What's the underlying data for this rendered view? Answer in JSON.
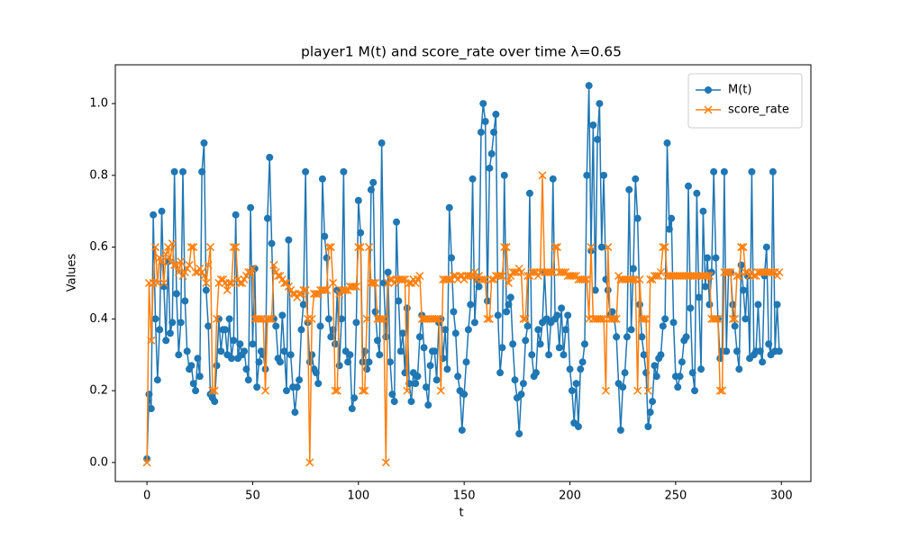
{
  "chart_data": {
    "type": "line",
    "title": "player1 M(t) and score_rate over time λ=0.65",
    "xlabel": "t",
    "ylabel": "Values",
    "x": [
      0,
      1,
      2,
      3,
      4,
      5,
      6,
      7,
      8,
      9,
      10,
      11,
      12,
      13,
      14,
      15,
      16,
      17,
      18,
      19,
      20,
      21,
      22,
      23,
      24,
      25,
      26,
      27,
      28,
      29,
      30,
      31,
      32,
      33,
      34,
      35,
      36,
      37,
      38,
      39,
      40,
      41,
      42,
      43,
      44,
      45,
      46,
      47,
      48,
      49,
      50,
      51,
      52,
      53,
      54,
      55,
      56,
      57,
      58,
      59,
      60,
      61,
      62,
      63,
      64,
      65,
      66,
      67,
      68,
      69,
      70,
      71,
      72,
      73,
      74,
      75,
      76,
      77,
      78,
      79,
      80,
      81,
      82,
      83,
      84,
      85,
      86,
      87,
      88,
      89,
      90,
      91,
      92,
      93,
      94,
      95,
      96,
      97,
      98,
      99,
      100,
      101,
      102,
      103,
      104,
      105,
      106,
      107,
      108,
      109,
      110,
      111,
      112,
      113,
      114,
      115,
      116,
      117,
      118,
      119,
      120,
      121,
      122,
      123,
      124,
      125,
      126,
      127,
      128,
      129,
      130,
      131,
      132,
      133,
      134,
      135,
      136,
      137,
      138,
      139,
      140,
      141,
      142,
      143,
      144,
      145,
      146,
      147,
      148,
      149,
      150,
      151,
      152,
      153,
      154,
      155,
      156,
      157,
      158,
      159,
      160,
      161,
      162,
      163,
      164,
      165,
      166,
      167,
      168,
      169,
      170,
      171,
      172,
      173,
      174,
      175,
      176,
      177,
      178,
      179,
      180,
      181,
      182,
      183,
      184,
      185,
      186,
      187,
      188,
      189,
      190,
      191,
      192,
      193,
      194,
      195,
      196,
      197,
      198,
      199,
      200,
      201,
      202,
      203,
      204,
      205,
      206,
      207,
      208,
      209,
      210,
      211,
      212,
      213,
      214,
      215,
      216,
      217,
      218,
      219,
      220,
      221,
      222,
      223,
      224,
      225,
      226,
      227,
      228,
      229,
      230,
      231,
      232,
      233,
      234,
      235,
      236,
      237,
      238,
      239,
      240,
      241,
      242,
      243,
      244,
      245,
      246,
      247,
      248,
      249,
      250,
      251,
      252,
      253,
      254,
      255,
      256,
      257,
      258,
      259,
      260,
      261,
      262,
      263,
      264,
      265,
      266,
      267,
      268,
      269,
      270,
      271,
      272,
      273,
      274,
      275,
      276,
      277,
      278,
      279,
      280,
      281,
      282,
      283,
      284,
      285,
      286,
      287,
      288,
      289,
      290,
      291,
      292,
      293,
      294,
      295,
      296,
      297,
      298,
      299
    ],
    "series": [
      {
        "name": "M(t)",
        "color": "#1f77b4",
        "marker": "o",
        "values": [
          0.01,
          0.19,
          0.15,
          0.69,
          0.4,
          0.23,
          0.37,
          0.7,
          0.49,
          0.34,
          0.56,
          0.36,
          0.39,
          0.81,
          0.47,
          0.3,
          0.39,
          0.81,
          0.45,
          0.31,
          0.26,
          0.27,
          0.22,
          0.2,
          0.29,
          0.24,
          0.81,
          0.89,
          0.48,
          0.38,
          0.19,
          0.18,
          0.17,
          0.27,
          0.4,
          0.31,
          0.37,
          0.37,
          0.3,
          0.4,
          0.29,
          0.34,
          0.69,
          0.29,
          0.33,
          0.3,
          0.31,
          0.26,
          0.23,
          0.71,
          0.33,
          0.54,
          0.21,
          0.28,
          0.31,
          0.3,
          0.26,
          0.68,
          0.85,
          0.61,
          0.4,
          0.38,
          0.29,
          0.28,
          0.41,
          0.31,
          0.2,
          0.62,
          0.3,
          0.21,
          0.14,
          0.21,
          0.23,
          0.37,
          0.44,
          0.81,
          0.39,
          0.28,
          0.3,
          0.26,
          0.25,
          0.22,
          0.38,
          0.79,
          0.63,
          0.57,
          0.4,
          0.35,
          0.37,
          0.33,
          0.48,
          0.27,
          0.4,
          0.81,
          0.31,
          0.28,
          0.3,
          0.15,
          0.18,
          0.39,
          0.73,
          0.64,
          0.28,
          0.31,
          0.26,
          0.28,
          0.76,
          0.78,
          0.42,
          0.34,
          0.3,
          0.89,
          0.5,
          0.35,
          0.53,
          0.28,
          0.19,
          0.17,
          0.67,
          0.45,
          0.31,
          0.36,
          0.25,
          0.43,
          0.22,
          0.17,
          0.25,
          0.22,
          0.24,
          0.35,
          0.41,
          0.32,
          0.21,
          0.16,
          0.27,
          0.31,
          0.31,
          0.23,
          0.39,
          0.4,
          0.29,
          0.37,
          0.26,
          0.71,
          0.57,
          0.42,
          0.36,
          0.24,
          0.2,
          0.09,
          0.19,
          0.28,
          0.37,
          0.44,
          0.79,
          0.39,
          0.51,
          0.49,
          0.92,
          1.0,
          0.95,
          0.45,
          0.82,
          0.86,
          0.92,
          0.97,
          0.41,
          0.25,
          0.32,
          0.8,
          0.42,
          0.44,
          0.46,
          0.33,
          0.23,
          0.18,
          0.08,
          0.19,
          0.22,
          0.34,
          0.38,
          0.75,
          0.3,
          0.24,
          0.25,
          0.37,
          0.33,
          0.39,
          0.53,
          0.4,
          0.3,
          0.39,
          0.79,
          0.4,
          0.41,
          0.32,
          0.43,
          0.3,
          0.37,
          0.41,
          0.26,
          0.2,
          0.11,
          0.22,
          0.1,
          0.26,
          0.28,
          0.33,
          0.8,
          1.05,
          0.59,
          0.94,
          0.48,
          0.9,
          1.0,
          0.6,
          0.8,
          0.51,
          0.48,
          0.41,
          0.42,
          0.4,
          0.35,
          0.22,
          0.09,
          0.21,
          0.25,
          0.35,
          0.76,
          0.37,
          0.54,
          0.79,
          0.68,
          0.44,
          0.35,
          0.3,
          0.25,
          0.1,
          0.14,
          0.17,
          0.27,
          0.24,
          0.29,
          0.3,
          0.38,
          0.4,
          0.89,
          0.65,
          0.68,
          0.39,
          0.24,
          0.21,
          0.24,
          0.28,
          0.34,
          0.35,
          0.77,
          0.43,
          0.25,
          0.2,
          0.75,
          0.46,
          0.26,
          0.7,
          0.49,
          0.57,
          0.44,
          0.53,
          0.81,
          0.57,
          0.4,
          0.29,
          0.31,
          0.81,
          0.31,
          0.53,
          0.53,
          0.44,
          0.38,
          0.31,
          0.26,
          0.55,
          0.48,
          0.4,
          0.52,
          0.29,
          0.81,
          0.3,
          0.31,
          0.44,
          0.31,
          0.28,
          0.52,
          0.6,
          0.33,
          0.3,
          0.81,
          0.31,
          0.44,
          0.31
        ]
      },
      {
        "name": "score_rate",
        "color": "#ff7f0e",
        "marker": "x",
        "values": [
          0,
          0.5,
          0.34,
          0.5,
          0.6,
          0.5,
          0.57,
          0.56,
          0.5,
          0.58,
          0.6,
          0.56,
          0.61,
          0.55,
          0.55,
          0.53,
          0.56,
          0.52,
          0.53,
          0.54,
          0.55,
          0.6,
          0.6,
          0.53,
          0.53,
          0.54,
          0.53,
          0.52,
          0.5,
          0.55,
          0.6,
          0.2,
          0.2,
          0.4,
          0.5,
          0.51,
          0.51,
          0.5,
          0.48,
          0.5,
          0.5,
          0.6,
          0.6,
          0.51,
          0.5,
          0.5,
          0.51,
          0.52,
          0.53,
          0.53,
          0.54,
          0.4,
          0.4,
          0.4,
          0.4,
          0.4,
          0.2,
          0.4,
          0.4,
          0.4,
          0.55,
          0.53,
          0.52,
          0.52,
          0.51,
          0.5,
          0.5,
          0.49,
          0.48,
          0.47,
          0.47,
          0.46,
          0.47,
          0.47,
          0.48,
          0.48,
          0.4,
          0,
          0.4,
          0.47,
          0.47,
          0.47,
          0.48,
          0.48,
          0.48,
          0.48,
          0.6,
          0.6,
          0.5,
          0.2,
          0.2,
          0.47,
          0.48,
          0.48,
          0.48,
          0.48,
          0.49,
          0.49,
          0.49,
          0.49,
          0.6,
          0.6,
          0.2,
          0.2,
          0.4,
          0.6,
          0.5,
          0.5,
          0.5,
          0.4,
          0.4,
          0.4,
          0.4,
          0,
          0.5,
          0.51,
          0.51,
          0.5,
          0.51,
          0.51,
          0.51,
          0.51,
          0.51,
          0.2,
          0.5,
          0.5,
          0.51,
          0.5,
          0.51,
          0.52,
          0.4,
          0.4,
          0.4,
          0.4,
          0.4,
          0.4,
          0.4,
          0.4,
          0.4,
          0.2,
          0.51,
          0.51,
          0.51,
          0.51,
          0.51,
          0.52,
          0.52,
          0.51,
          0.52,
          0.52,
          0.51,
          0.52,
          0.52,
          0.52,
          0.52,
          0.53,
          0.51,
          0.52,
          0.51,
          0.51,
          0.51,
          0.4,
          0.4,
          0.51,
          0.51,
          0.52,
          0.52,
          0.52,
          0.52,
          0.6,
          0.6,
          0.5,
          0.52,
          0.53,
          0.53,
          0.53,
          0.54,
          0.53,
          0.4,
          0.4,
          0.52,
          0.52,
          0.53,
          0.53,
          0.53,
          0.52,
          0.53,
          0.8,
          0.53,
          0.53,
          0.53,
          0.53,
          0.53,
          0.6,
          0.6,
          0.53,
          0.53,
          0.53,
          0.53,
          0.52,
          0.52,
          0.52,
          0.52,
          0.52,
          0.51,
          0.51,
          0.51,
          0.51,
          0.51,
          0.4,
          0.6,
          0.4,
          0.4,
          0.4,
          0.4,
          0.4,
          0.4,
          0.2,
          0.6,
          0.4,
          0.4,
          0.4,
          0.4,
          0.52,
          0.51,
          0.51,
          0.51,
          0.51,
          0.51,
          0.51,
          0.51,
          0.51,
          0.2,
          0.51,
          0.4,
          0.4,
          0.4,
          0.2,
          0.51,
          0.51,
          0.52,
          0.52,
          0.52,
          0.53,
          0.6,
          0.6,
          0.52,
          0.52,
          0.52,
          0.52,
          0.52,
          0.52,
          0.52,
          0.52,
          0.52,
          0.52,
          0.52,
          0.52,
          0.52,
          0.52,
          0.52,
          0.52,
          0.52,
          0.52,
          0.52,
          0.52,
          0.52,
          0.4,
          0.4,
          0.4,
          0.4,
          0.2,
          0.2,
          0.53,
          0.53,
          0.53,
          0.53,
          0.4,
          0.4,
          0.52,
          0.52,
          0.6,
          0.6,
          0.53,
          0.53,
          0.52,
          0.53,
          0.52,
          0.52,
          0.53,
          0.53,
          0.53,
          0.53,
          0.53,
          0.53,
          0.53,
          0.53,
          0.53,
          0.52,
          0.53
        ]
      }
    ],
    "xlim": [
      -14.95,
      313.95
    ],
    "ylim": [
      -0.053,
      1.108
    ],
    "xticks": [
      0,
      50,
      100,
      150,
      200,
      250,
      300
    ],
    "yticks": [
      {
        "value": 0,
        "label": "0.0"
      },
      {
        "value": 0.2,
        "label": "0.2"
      },
      {
        "value": 0.4,
        "label": "0.4"
      },
      {
        "value": 0.6,
        "label": "0.6"
      },
      {
        "value": 0.8,
        "label": "0.8"
      },
      {
        "value": 1,
        "label": "1.0"
      }
    ],
    "legend": "upper right",
    "grid": false
  }
}
